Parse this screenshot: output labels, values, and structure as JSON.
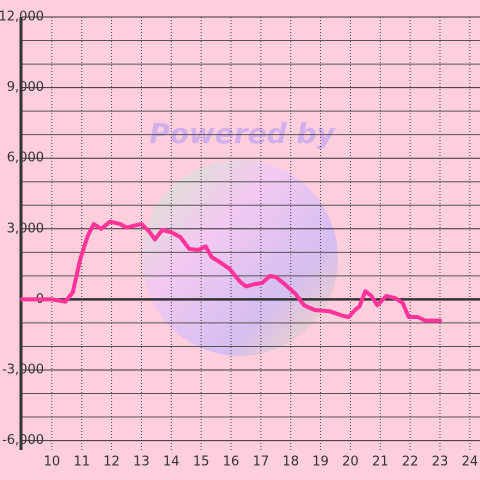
{
  "chart_data": {
    "type": "line",
    "watermark": "Powered by",
    "x": [
      9.0,
      10.0,
      10.45,
      10.7,
      10.95,
      11.2,
      11.4,
      11.65,
      11.95,
      12.3,
      12.5,
      12.8,
      13.0,
      13.25,
      13.45,
      13.7,
      14.0,
      14.3,
      14.6,
      14.9,
      15.15,
      15.35,
      15.6,
      15.95,
      16.3,
      16.5,
      16.8,
      17.05,
      17.3,
      17.5,
      17.8,
      18.15,
      18.45,
      18.8,
      19.3,
      19.75,
      19.95,
      20.15,
      20.3,
      20.5,
      20.7,
      20.9,
      21.2,
      21.5,
      21.75,
      21.95,
      22.25,
      22.5,
      23.0
    ],
    "series": [
      {
        "color": "#ff3399",
        "values": [
          0,
          0,
          -100,
          300,
          1700,
          2700,
          3200,
          3000,
          3300,
          3200,
          3050,
          3150,
          3200,
          2900,
          2550,
          2950,
          2850,
          2650,
          2150,
          2100,
          2250,
          1800,
          1600,
          1300,
          750,
          550,
          650,
          700,
          1000,
          950,
          650,
          250,
          -250,
          -450,
          -500,
          -700,
          -750,
          -450,
          -300,
          350,
          150,
          -250,
          150,
          50,
          -150,
          -750,
          -750,
          -900,
          -900
        ]
      }
    ],
    "xlim": [
      9,
      24.34
    ],
    "xticks": [
      10,
      11,
      12,
      13,
      14,
      15,
      16,
      17,
      18,
      19,
      20,
      21,
      22,
      23,
      24
    ],
    "ylim": [
      -6400,
      12000
    ],
    "yticks": [
      {
        "value": -6000,
        "label": "-6,000"
      },
      {
        "value": -3000,
        "label": "-3,000"
      },
      0,
      {
        "value": 3000,
        "label": "3,000"
      },
      {
        "value": 6000,
        "label": "6,000"
      },
      {
        "value": 9000,
        "label": "9,000"
      },
      {
        "value": 12000,
        "label": "12,000"
      }
    ],
    "yminor_ticks": [
      -5000,
      -4000,
      -2000,
      -1000,
      1000,
      2000,
      4000,
      5000,
      7000,
      8000,
      10000,
      11000
    ],
    "grid": true
  }
}
